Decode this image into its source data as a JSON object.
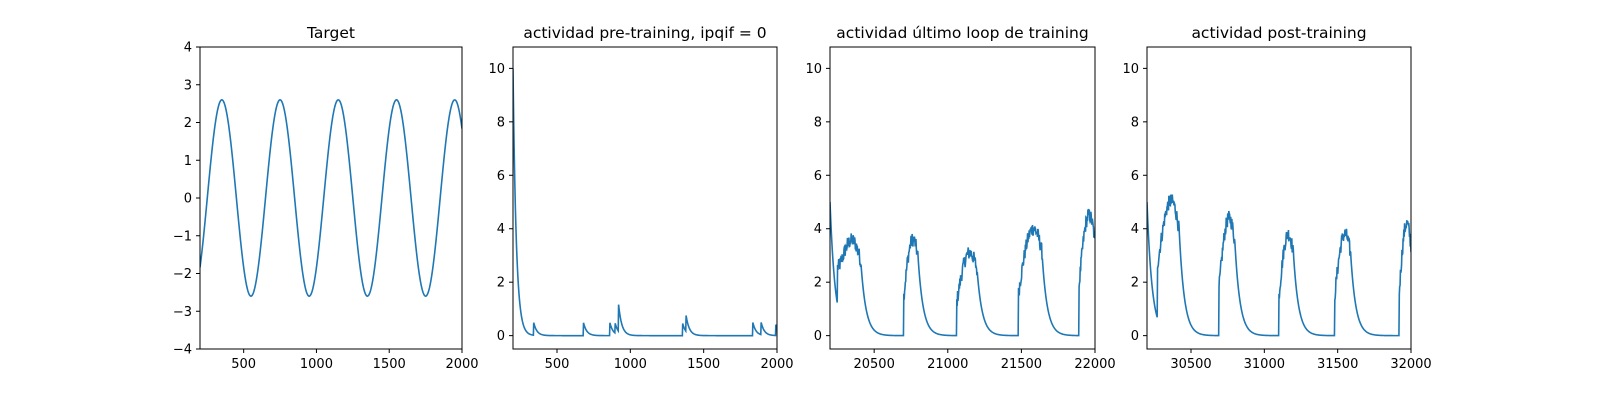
{
  "chart_data": [
    {
      "type": "line",
      "title": "Target",
      "xlabel": "",
      "ylabel": "",
      "xlim": [
        200,
        2000
      ],
      "ylim": [
        -4,
        4
      ],
      "xticks": [
        500,
        1000,
        1500,
        2000
      ],
      "yticks": [
        -4,
        -3,
        -2,
        -1,
        0,
        1,
        2,
        3,
        4
      ],
      "color": "#1f77b4",
      "grid": false,
      "series": [
        {
          "kind": "sine",
          "x_start": 200,
          "x_end": 2000,
          "amplitude": 2.6,
          "period": 400,
          "peak_x": 350
        }
      ]
    },
    {
      "type": "line",
      "title": "actividad pre-training, ipqif = 0",
      "xlabel": "",
      "ylabel": "",
      "xlim": [
        200,
        2000
      ],
      "ylim": [
        -0.5,
        10.8
      ],
      "xticks": [
        500,
        1000,
        1500,
        2000
      ],
      "yticks": [
        0,
        2,
        4,
        6,
        8,
        10
      ],
      "color": "#1f77b4",
      "grid": false,
      "series": [
        {
          "kind": "spikes",
          "x_start": 200,
          "x_end": 2000,
          "initial": 10.0,
          "decay": 22,
          "spikes": [
            [
              340,
              0.5
            ],
            [
              680,
              0.5
            ],
            [
              860,
              0.5
            ],
            [
              895,
              0.4
            ],
            [
              920,
              1.0
            ],
            [
              1355,
              0.5
            ],
            [
              1380,
              0.6
            ],
            [
              1835,
              0.5
            ],
            [
              1890,
              0.5
            ],
            [
              1990,
              0.45
            ]
          ]
        }
      ]
    },
    {
      "type": "line",
      "title": "actividad último loop de training",
      "xlabel": "",
      "ylabel": "",
      "xlim": [
        20200,
        22000
      ],
      "ylim": [
        -0.5,
        10.8
      ],
      "xticks": [
        20500,
        21000,
        21500,
        22000
      ],
      "yticks": [
        0,
        2,
        4,
        6,
        8,
        10
      ],
      "color": "#1f77b4",
      "grid": false,
      "series": [
        {
          "kind": "bursts",
          "x_start": 20200,
          "x_end": 22000,
          "initial": 5.0,
          "decay": 35,
          "bursts": [
            [
              20250,
              20410,
              3.5
            ],
            [
              20700,
              20800,
              3.6
            ],
            [
              21060,
              21200,
              3.1
            ],
            [
              21480,
              21640,
              4.0
            ],
            [
              21890,
              22000,
              4.5
            ]
          ]
        }
      ]
    },
    {
      "type": "line",
      "title": "actividad post-training",
      "xlabel": "",
      "ylabel": "",
      "xlim": [
        30200,
        32000
      ],
      "ylim": [
        -0.5,
        10.8
      ],
      "xticks": [
        30500,
        31000,
        31500,
        32000
      ],
      "yticks": [
        0,
        2,
        4,
        6,
        8,
        10
      ],
      "color": "#1f77b4",
      "grid": false,
      "series": [
        {
          "kind": "bursts",
          "x_start": 30200,
          "x_end": 32000,
          "initial": 5.0,
          "decay": 35,
          "bursts": [
            [
              30270,
              30420,
              5.0
            ],
            [
              30690,
              30800,
              4.4
            ],
            [
              31100,
              31200,
              3.8
            ],
            [
              31480,
              31590,
              3.8
            ],
            [
              31920,
              32000,
              4.2
            ]
          ]
        }
      ]
    }
  ]
}
